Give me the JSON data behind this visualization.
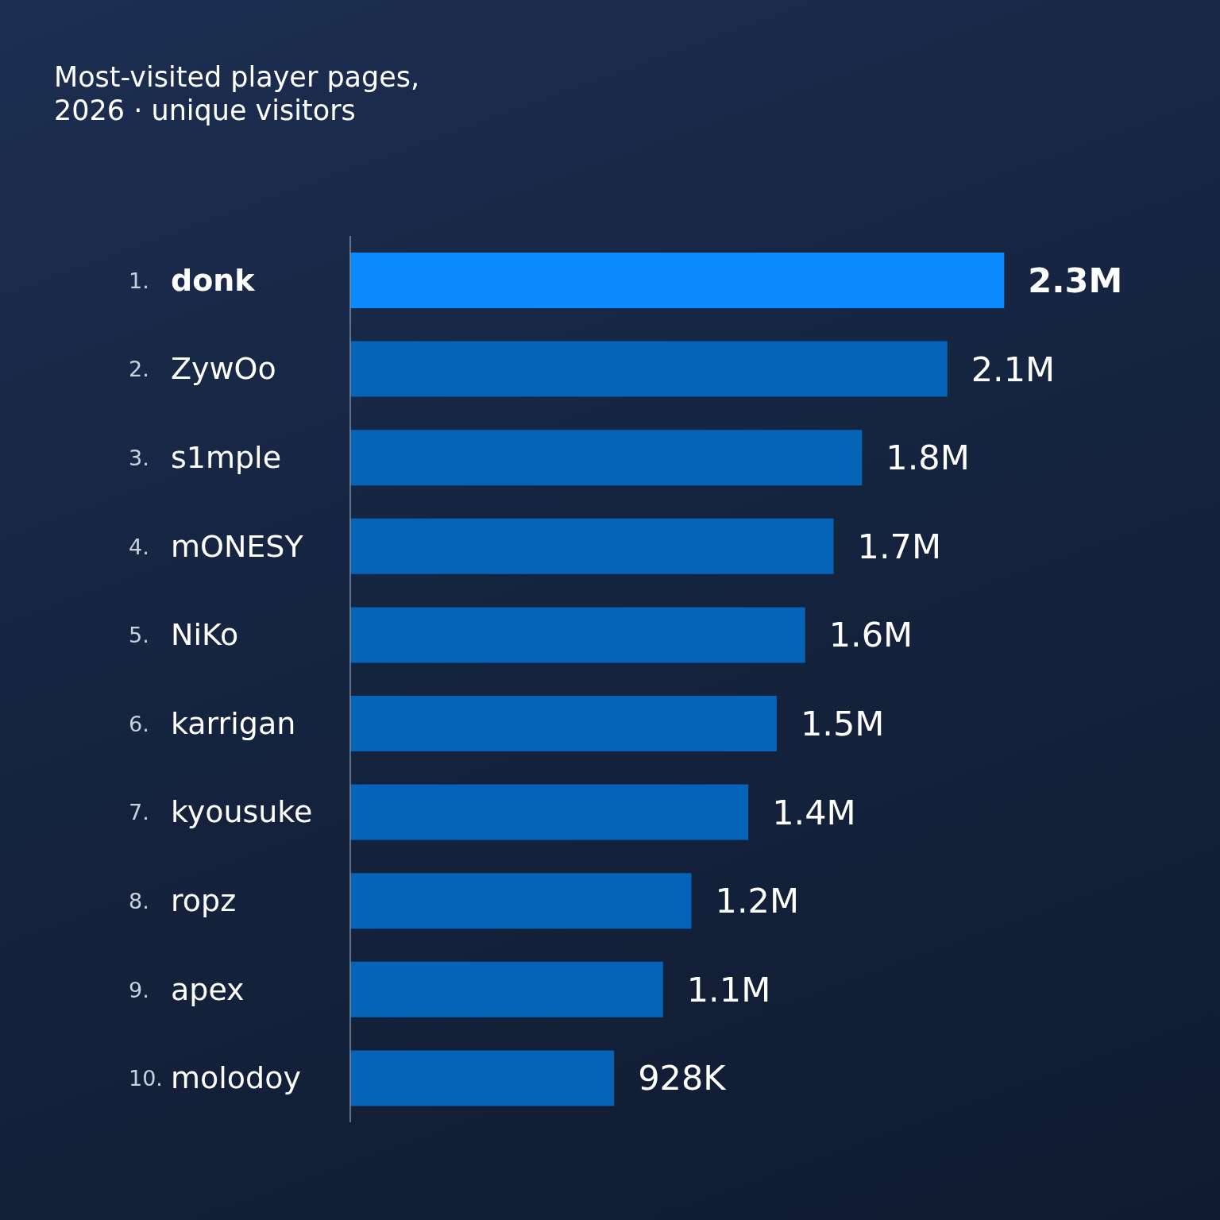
{
  "chart_data": {
    "type": "bar",
    "orientation": "horizontal",
    "title": "Most-visited player pages, 2026 · unique visitors",
    "categories": [
      "1. donk",
      "2. ZywOo",
      "3. s1mple",
      "4. mONESY",
      "5. NiKo",
      "6. karrigan",
      "7. kyousuke",
      "8. ropz",
      "9. apex",
      "10. molodoy"
    ],
    "values": [
      2300000,
      2100000,
      1800000,
      1700000,
      1600000,
      1500000,
      1400000,
      1200000,
      1100000,
      928000
    ],
    "value_labels": [
      "2.3M",
      "2.1M",
      "1.8M",
      "1.7M",
      "1.6M",
      "1.5M",
      "1.4M",
      "1.2M",
      "1.1M",
      "928K"
    ],
    "colors": [
      "#0a8cff",
      "#0563b8",
      "#0563b8",
      "#0563b8",
      "#0563b8",
      "#0563b8",
      "#0563b8",
      "#0563b8",
      "#0563b8",
      "#0563b8"
    ]
  }
}
